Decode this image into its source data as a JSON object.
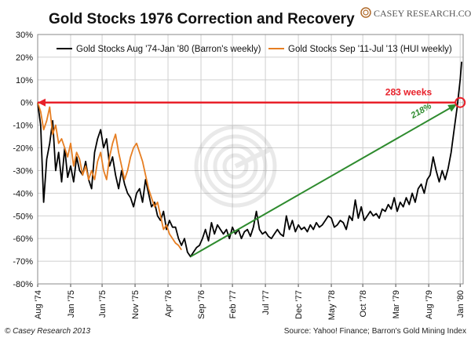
{
  "chart_data": {
    "type": "line",
    "title": "Gold Stocks 1976 Correction and Recovery",
    "ylim": [
      -80,
      30
    ],
    "y_ticks": [
      "30%",
      "20%",
      "10%",
      "0%",
      "-10%",
      "-20%",
      "-30%",
      "-40%",
      "-50%",
      "-60%",
      "-70%",
      "-80%"
    ],
    "y_tick_values": [
      30,
      20,
      10,
      0,
      -10,
      -20,
      -30,
      -40,
      -50,
      -60,
      -70,
      -80
    ],
    "x_tick_labels": [
      "Aug '74",
      "Jan '75",
      "Jun '75",
      "Nov '75",
      "Apr '76",
      "Sep '76",
      "Feb '77",
      "Jul '77",
      "Dec '77",
      "May '78",
      "Oct '78",
      "Mar '79",
      "Aug '79",
      "Jan '80"
    ],
    "x_ticks_weeks": [
      0,
      22,
      43,
      65,
      87,
      109,
      130,
      152,
      174,
      196,
      217,
      239,
      261,
      282
    ],
    "x_range_weeks": [
      0,
      284
    ],
    "grid": true,
    "legend_position": "top",
    "series": [
      {
        "name": "Gold Stocks Aug '74-Jan '80 (Barron's weekly)",
        "color": "#000000",
        "x_weeks": [
          0,
          2,
          4,
          6,
          8,
          10,
          12,
          14,
          16,
          18,
          20,
          22,
          24,
          26,
          28,
          30,
          32,
          34,
          36,
          38,
          40,
          42,
          44,
          46,
          48,
          50,
          52,
          54,
          56,
          58,
          60,
          62,
          64,
          66,
          68,
          70,
          72,
          74,
          76,
          78,
          80,
          82,
          84,
          86,
          88,
          90,
          92,
          94,
          96,
          98,
          100,
          102,
          104,
          106,
          108,
          110,
          112,
          114,
          116,
          118,
          120,
          122,
          124,
          126,
          128,
          130,
          132,
          134,
          136,
          138,
          140,
          142,
          144,
          146,
          148,
          150,
          152,
          154,
          156,
          158,
          160,
          162,
          164,
          166,
          168,
          170,
          172,
          174,
          176,
          178,
          180,
          182,
          184,
          186,
          188,
          190,
          192,
          194,
          196,
          198,
          200,
          202,
          204,
          206,
          208,
          210,
          212,
          214,
          216,
          218,
          220,
          222,
          224,
          226,
          228,
          230,
          232,
          234,
          236,
          238,
          240,
          242,
          244,
          246,
          248,
          250,
          252,
          254,
          256,
          258,
          260,
          262,
          264,
          266,
          268,
          270,
          272,
          274,
          276,
          278,
          280,
          282,
          283
        ],
        "values": [
          0,
          -10,
          -44,
          -25,
          -18,
          -8,
          -30,
          -22,
          -35,
          -20,
          -33,
          -28,
          -35,
          -24,
          -30,
          -32,
          -26,
          -34,
          -38,
          -22,
          -16,
          -12,
          -20,
          -16,
          -28,
          -24,
          -32,
          -38,
          -30,
          -36,
          -40,
          -42,
          -46,
          -40,
          -38,
          -44,
          -34,
          -40,
          -46,
          -44,
          -50,
          -52,
          -48,
          -56,
          -52,
          -55,
          -55,
          -60,
          -63,
          -60,
          -66,
          -68,
          -66,
          -64,
          -63,
          -60,
          -56,
          -61,
          -53,
          -58,
          -54,
          -56,
          -58,
          -56,
          -60,
          -55,
          -58,
          -56,
          -60,
          -57,
          -56,
          -59,
          -55,
          -48,
          -56,
          -58,
          -57,
          -59,
          -60,
          -58,
          -56,
          -58,
          -59,
          -50,
          -56,
          -52,
          -57,
          -54,
          -56,
          -55,
          -57,
          -54,
          -56,
          -53,
          -55,
          -54,
          -52,
          -50,
          -51,
          -55,
          -54,
          -52,
          -53,
          -56,
          -50,
          -52,
          -43,
          -51,
          -46,
          -52,
          -50,
          -48,
          -50,
          -49,
          -51,
          -47,
          -48,
          -45,
          -47,
          -42,
          -48,
          -44,
          -46,
          -42,
          -45,
          -40,
          -44,
          -38,
          -36,
          -40,
          -34,
          -32,
          -24,
          -30,
          -35,
          -30,
          -34,
          -29,
          -22,
          -12,
          -2,
          10,
          18
        ]
      },
      {
        "name": "Gold Stocks Sep '11-Jul '13 (HUI weekly)",
        "color": "#e67e22",
        "x_weeks": [
          0,
          2,
          4,
          6,
          8,
          10,
          12,
          14,
          16,
          18,
          20,
          22,
          24,
          26,
          28,
          30,
          32,
          34,
          36,
          38,
          40,
          42,
          44,
          46,
          48,
          50,
          52,
          54,
          56,
          58,
          60,
          62,
          64,
          66,
          68,
          70,
          72,
          74,
          76,
          78,
          80,
          82,
          84,
          86,
          88,
          90,
          92,
          94,
          96
        ],
        "values": [
          0,
          -4,
          -12,
          -8,
          -2,
          -14,
          -10,
          -18,
          -16,
          -20,
          -24,
          -18,
          -28,
          -22,
          -25,
          -32,
          -28,
          -34,
          -30,
          -34,
          -26,
          -22,
          -30,
          -34,
          -24,
          -18,
          -14,
          -22,
          -28,
          -34,
          -30,
          -24,
          -20,
          -18,
          -22,
          -26,
          -32,
          -38,
          -42,
          -46,
          -44,
          -50,
          -56,
          -54,
          -58,
          -60,
          -62,
          -63,
          -65
        ]
      }
    ],
    "annotations": [
      {
        "text": "283 weeks",
        "color": "#e8202a"
      },
      {
        "text": "218%",
        "color": "#2e8b2e"
      }
    ]
  },
  "header": {
    "title": "Gold Stocks 1976 Correction and Recovery",
    "brand": "CASEY RESEARCH.COM"
  },
  "footer": {
    "copyright": "© Casey Research 2013",
    "source": "Source: Yahoo! Finance; Barron's Gold Mining Index"
  },
  "colors": {
    "black_series": "#000000",
    "orange_series": "#e67e22",
    "red_line": "#e8202a",
    "green_arrow": "#2e8b2e",
    "grid": "#cfcfcf"
  }
}
